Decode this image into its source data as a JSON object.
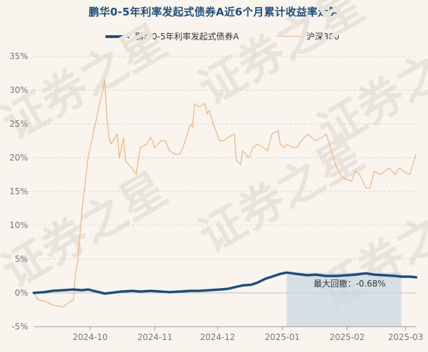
{
  "chart_data": {
    "type": "line",
    "title": "鹏华0-5年利率发起式债券A近6个月累计收益率走势",
    "xlabel": "",
    "ylabel": "",
    "ylim": [
      -5,
      35
    ],
    "y_ticks": [
      "35%",
      "30%",
      "25%",
      "20%",
      "15%",
      "10%",
      "5%",
      "0%",
      "-5%"
    ],
    "x_ticks": [
      "2024-10",
      "2024-11",
      "2024-12",
      "2025-01",
      "2025-02",
      "2025-03"
    ],
    "x_range": [
      "2024-09-04",
      "2025-03-06"
    ],
    "grid": "horizontal dashed",
    "legend_position": "top-center",
    "colors": {
      "fund": "#1f4e7a",
      "index": "#f0b27a",
      "drawdown": "#c9d6e3",
      "background": "#f9f4ee"
    },
    "watermark": "证券之星",
    "series": [
      {
        "name": "鹏华0-5年利率发起式债券A",
        "points": [
          [
            "2024-09-04",
            0.0
          ],
          [
            "2024-09-09",
            0.1
          ],
          [
            "2024-09-13",
            0.3
          ],
          [
            "2024-09-18",
            0.4
          ],
          [
            "2024-09-23",
            0.5
          ],
          [
            "2024-09-27",
            0.4
          ],
          [
            "2024-09-30",
            0.5
          ],
          [
            "2024-10-08",
            -0.1
          ],
          [
            "2024-10-11",
            0.0
          ],
          [
            "2024-10-16",
            0.2
          ],
          [
            "2024-10-21",
            0.3
          ],
          [
            "2024-10-25",
            0.2
          ],
          [
            "2024-10-30",
            0.3
          ],
          [
            "2024-11-04",
            0.2
          ],
          [
            "2024-11-08",
            0.1
          ],
          [
            "2024-11-13",
            0.2
          ],
          [
            "2024-11-18",
            0.3
          ],
          [
            "2024-11-22",
            0.3
          ],
          [
            "2024-11-27",
            0.4
          ],
          [
            "2024-12-02",
            0.5
          ],
          [
            "2024-12-06",
            0.6
          ],
          [
            "2024-12-10",
            0.9
          ],
          [
            "2024-12-13",
            1.1
          ],
          [
            "2024-12-17",
            1.2
          ],
          [
            "2024-12-20",
            1.5
          ],
          [
            "2024-12-24",
            2.1
          ],
          [
            "2024-12-27",
            2.4
          ],
          [
            "2024-12-31",
            2.8
          ],
          [
            "2025-01-03",
            3.0
          ],
          [
            "2025-01-08",
            2.8
          ],
          [
            "2025-01-13",
            2.6
          ],
          [
            "2025-01-17",
            2.7
          ],
          [
            "2025-01-22",
            2.5
          ],
          [
            "2025-01-27",
            2.5
          ],
          [
            "2025-02-05",
            2.7
          ],
          [
            "2025-02-10",
            2.9
          ],
          [
            "2025-02-14",
            2.7
          ],
          [
            "2025-02-19",
            2.6
          ],
          [
            "2025-02-24",
            2.5
          ],
          [
            "2025-02-27",
            2.4
          ],
          [
            "2025-03-03",
            2.4
          ],
          [
            "2025-03-06",
            2.3
          ]
        ]
      },
      {
        "name": "沪深300",
        "points": [
          [
            "2024-09-04",
            0.0
          ],
          [
            "2024-09-06",
            -1.0
          ],
          [
            "2024-09-10",
            -1.3
          ],
          [
            "2024-09-13",
            -1.8
          ],
          [
            "2024-09-18",
            -2.1
          ],
          [
            "2024-09-20",
            -1.6
          ],
          [
            "2024-09-23",
            -1.0
          ],
          [
            "2024-09-24",
            3.0
          ],
          [
            "2024-09-25",
            4.5
          ],
          [
            "2024-09-26",
            8.0
          ],
          [
            "2024-09-27",
            12.0
          ],
          [
            "2024-09-30",
            20.0
          ],
          [
            "2024-10-08",
            31.5
          ],
          [
            "2024-10-09",
            26.0
          ],
          [
            "2024-10-10",
            23.0
          ],
          [
            "2024-10-11",
            22.0
          ],
          [
            "2024-10-14",
            23.5
          ],
          [
            "2024-10-15",
            20.0
          ],
          [
            "2024-10-17",
            23.0
          ],
          [
            "2024-10-18",
            19.5
          ],
          [
            "2024-10-21",
            18.5
          ],
          [
            "2024-10-23",
            17.5
          ],
          [
            "2024-10-25",
            21.5
          ],
          [
            "2024-10-28",
            22.0
          ],
          [
            "2024-10-30",
            23.0
          ],
          [
            "2024-11-01",
            21.5
          ],
          [
            "2024-11-04",
            22.5
          ],
          [
            "2024-11-06",
            22.5
          ],
          [
            "2024-11-08",
            21.0
          ],
          [
            "2024-11-11",
            20.5
          ],
          [
            "2024-11-13",
            20.5
          ],
          [
            "2024-11-15",
            22.0
          ],
          [
            "2024-11-18",
            25.0
          ],
          [
            "2024-11-19",
            24.5
          ],
          [
            "2024-11-20",
            28.0
          ],
          [
            "2024-11-22",
            27.5
          ],
          [
            "2024-11-25",
            28.0
          ],
          [
            "2024-11-26",
            26.5
          ],
          [
            "2024-11-27",
            27.0
          ],
          [
            "2024-11-29",
            25.0
          ],
          [
            "2024-12-02",
            22.5
          ],
          [
            "2024-12-04",
            22.5
          ],
          [
            "2024-12-06",
            23.0
          ],
          [
            "2024-12-09",
            23.5
          ],
          [
            "2024-12-10",
            19.5
          ],
          [
            "2024-12-12",
            19.0
          ],
          [
            "2024-12-13",
            21.0
          ],
          [
            "2024-12-16",
            20.0
          ],
          [
            "2024-12-18",
            21.5
          ],
          [
            "2024-12-20",
            22.0
          ],
          [
            "2024-12-23",
            21.5
          ],
          [
            "2024-12-25",
            21.0
          ],
          [
            "2024-12-27",
            23.5
          ],
          [
            "2024-12-30",
            24.0
          ],
          [
            "2024-12-31",
            22.0
          ],
          [
            "2025-01-02",
            21.5
          ],
          [
            "2025-01-03",
            22.0
          ],
          [
            "2025-01-06",
            21.5
          ],
          [
            "2025-01-08",
            21.5
          ],
          [
            "2025-01-10",
            22.5
          ],
          [
            "2025-01-13",
            23.5
          ],
          [
            "2025-01-15",
            23.0
          ],
          [
            "2025-01-17",
            22.5
          ],
          [
            "2025-01-20",
            23.0
          ],
          [
            "2025-01-22",
            23.5
          ],
          [
            "2025-01-24",
            21.5
          ],
          [
            "2025-01-27",
            18.5
          ],
          [
            "2025-01-30",
            17.0
          ],
          [
            "2025-02-03",
            16.5
          ],
          [
            "2025-02-05",
            18.0
          ],
          [
            "2025-02-07",
            17.5
          ],
          [
            "2025-02-10",
            15.5
          ],
          [
            "2025-02-12",
            15.5
          ],
          [
            "2025-02-14",
            18.0
          ],
          [
            "2025-02-17",
            17.5
          ],
          [
            "2025-02-19",
            18.0
          ],
          [
            "2025-02-21",
            18.5
          ],
          [
            "2025-02-24",
            17.5
          ],
          [
            "2025-02-26",
            18.5
          ],
          [
            "2025-02-28",
            18.0
          ],
          [
            "2025-03-03",
            17.5
          ],
          [
            "2025-03-06",
            20.5
          ]
        ]
      }
    ],
    "annotation": {
      "label": "最大回撤：",
      "value": "-0.68%",
      "drawdown_start": "2025-01-03",
      "drawdown_end": "2025-02-27"
    }
  }
}
